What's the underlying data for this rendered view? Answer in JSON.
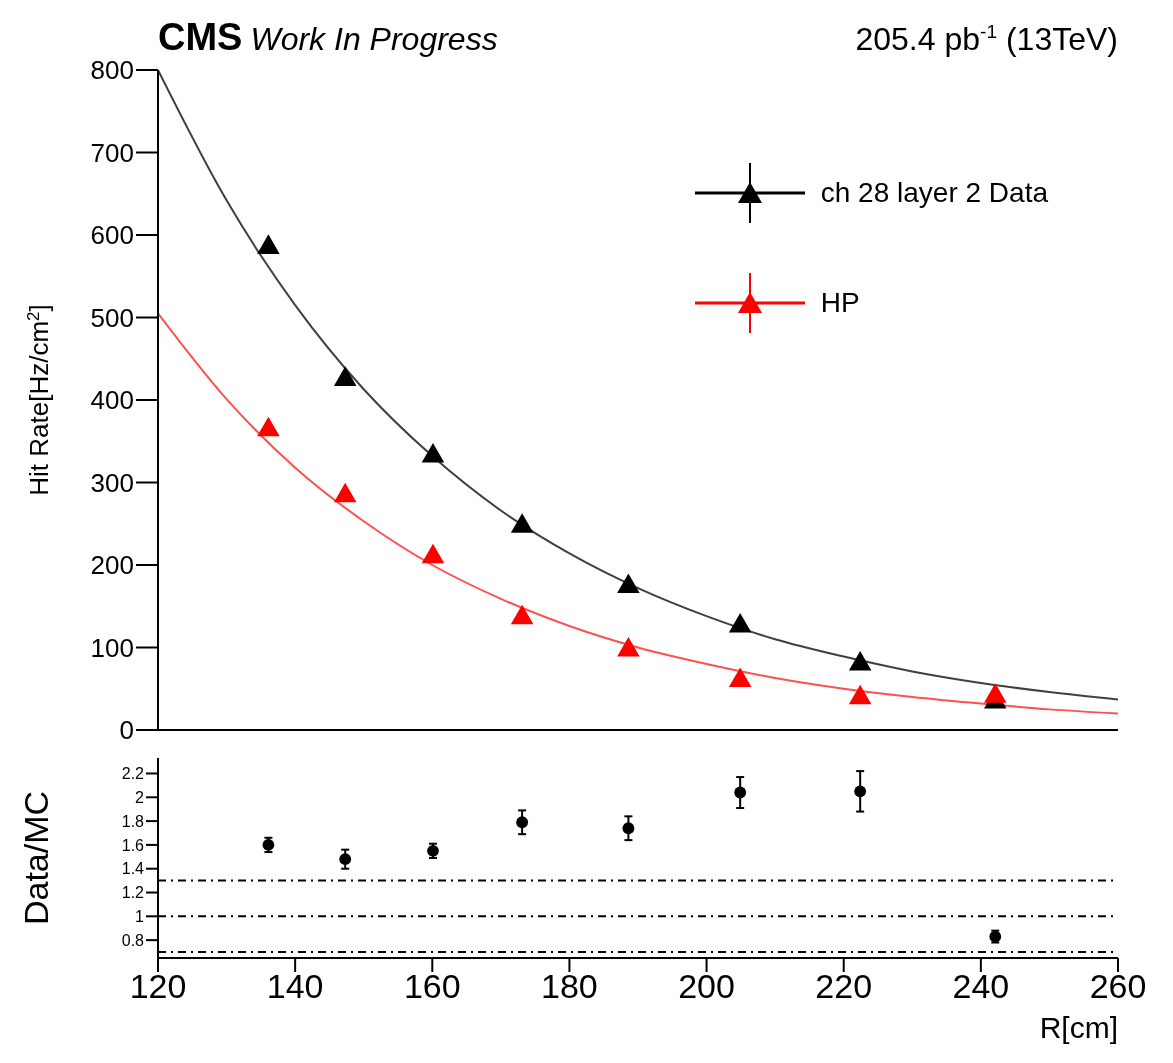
{
  "chart_data": [
    {
      "type": "scatter",
      "title": "CMS",
      "subtitle": "Work In Progress",
      "annotations": [
        "205.4 pb$^{-1}$ (13TeV)"
      ],
      "ylabel": "Hit Rate[Hz/cm$^{2}$]",
      "xlim": [
        120,
        260
      ],
      "xticks": [
        120,
        140,
        160,
        180,
        200,
        220,
        240,
        260
      ],
      "ylim": [
        0,
        800
      ],
      "yticks": [
        0,
        100,
        200,
        300,
        400,
        500,
        600,
        700,
        800
      ],
      "tick_labels": "y",
      "legend": "top right",
      "marker": "triangle",
      "grid": false,
      "series": [
        {
          "name": "ch 28 layer 2 Data",
          "color": "#000000",
          "x": [
            136.1,
            147.3,
            160.1,
            173.1,
            188.6,
            204.9,
            222.4,
            242.1
          ],
          "values": [
            585,
            425,
            332,
            247,
            174,
            126,
            80,
            34
          ]
        },
        {
          "name": "HP",
          "color": "#ff0000",
          "x": [
            136.1,
            147.3,
            160.1,
            173.1,
            188.6,
            204.9,
            222.4,
            242.1
          ],
          "values": [
            364,
            284,
            210,
            136,
            97,
            60,
            39,
            41
          ]
        },
        {
          "type": "line",
          "marker": "none",
          "color": "#404040",
          "x": [
            120,
            130,
            140,
            150,
            160,
            170,
            180,
            190,
            200,
            210,
            220,
            230,
            240,
            250,
            260
          ],
          "values": [
            800,
            642,
            515,
            413,
            332,
            266,
            214,
            172,
            138,
            110,
            89,
            71,
            57,
            46,
            37
          ]
        },
        {
          "type": "line",
          "marker": "none",
          "color": "#ff5050",
          "x": [
            120,
            130,
            140,
            150,
            160,
            170,
            180,
            190,
            200,
            210,
            220,
            230,
            240,
            250,
            260
          ],
          "values": [
            505,
            401,
            318,
            253,
            200,
            159,
            126,
            100,
            80,
            63,
            50,
            40,
            32,
            25,
            20
          ]
        }
      ]
    },
    {
      "type": "scatter",
      "xlabel": "R[cm]",
      "ylabel": "Data/MC",
      "xlim": [
        120,
        260
      ],
      "xticks": [
        120,
        140,
        160,
        180,
        200,
        220,
        240,
        260
      ],
      "ylim": [
        0.65,
        2.33
      ],
      "yticks": [
        0.8,
        1,
        1.2,
        1.4,
        1.6,
        1.8,
        2,
        2.2
      ],
      "marker": "circle",
      "grid": false,
      "series": [
        {
          "color": "#000000",
          "x": [
            136.1,
            147.3,
            160.1,
            173.1,
            188.6,
            204.9,
            222.4,
            242.1
          ],
          "values": [
            1.6,
            1.48,
            1.55,
            1.79,
            1.74,
            2.04,
            2.05,
            0.83
          ],
          "errors": [
            0.06,
            0.08,
            0.06,
            0.1,
            0.1,
            0.13,
            0.17,
            0.05
          ]
        }
      ],
      "ref_lines": [
        {
          "axis": "y",
          "value": 0.7,
          "line_style": "dashed"
        },
        {
          "axis": "y",
          "value": 1,
          "line_style": "dashed"
        },
        {
          "axis": "y",
          "value": 1.3,
          "line_style": "dashed"
        }
      ]
    }
  ]
}
